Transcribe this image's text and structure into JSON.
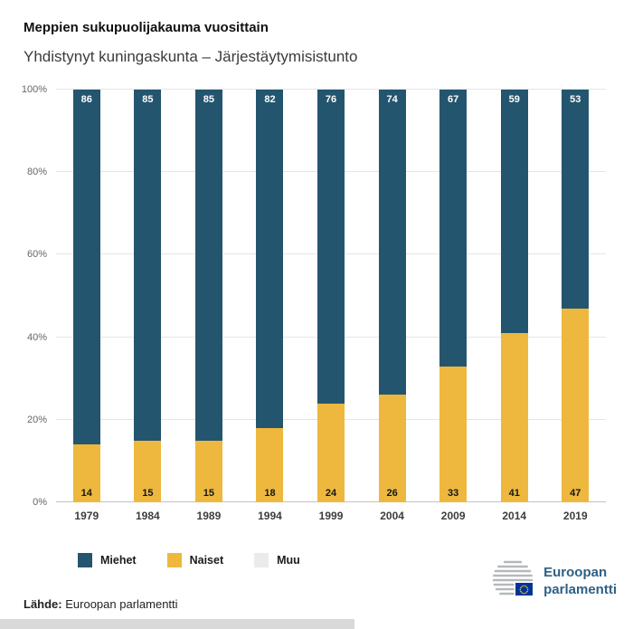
{
  "header": {
    "title": "Meppien sukupuolijakauma vuosittain",
    "subtitle": "Yhdistynyt kuningaskunta – Järjestäytymisistunto"
  },
  "chart_data": {
    "type": "bar",
    "stacked": true,
    "title": "Meppien sukupuolijakauma vuosittain",
    "subtitle": "Yhdistynyt kuningaskunta – Järjestäytymisistunto",
    "categories": [
      "1979",
      "1984",
      "1989",
      "1994",
      "1999",
      "2004",
      "2009",
      "2014",
      "2019"
    ],
    "series": [
      {
        "name": "Miehet",
        "color": "#24556f",
        "values": [
          86,
          85,
          85,
          82,
          76,
          74,
          67,
          59,
          53
        ]
      },
      {
        "name": "Naiset",
        "color": "#edb83d",
        "values": [
          14,
          15,
          15,
          18,
          24,
          26,
          33,
          41,
          47
        ]
      },
      {
        "name": "Muu",
        "color": "#ebebeb",
        "values": [
          0,
          0,
          0,
          0,
          0,
          0,
          0,
          0,
          0
        ]
      }
    ],
    "xlabel": "",
    "ylabel": "",
    "ylim": [
      0,
      100
    ],
    "yticks": [
      "0%",
      "20%",
      "40%",
      "60%",
      "80%",
      "100%"
    ],
    "grid": true,
    "legend_position": "bottom"
  },
  "footer": {
    "source_label": "Lähde:",
    "source_text": " Euroopan parlamentti"
  },
  "branding": {
    "line1": "Euroopan",
    "line2": "parlamentti"
  }
}
